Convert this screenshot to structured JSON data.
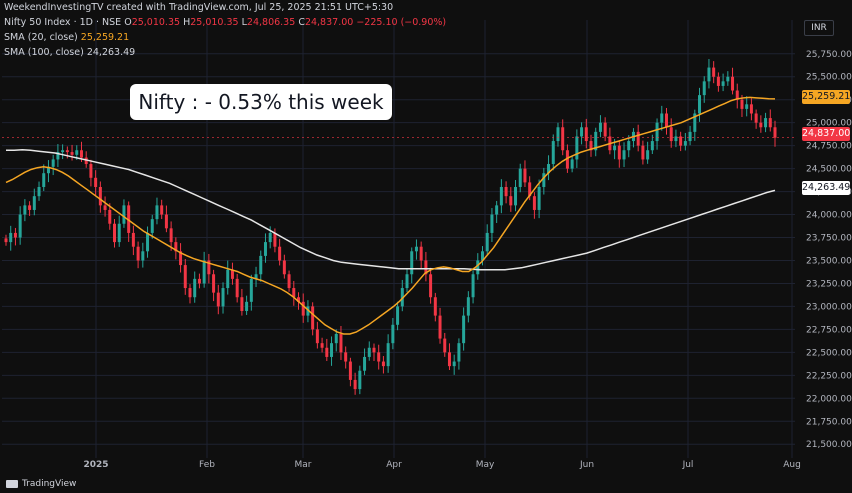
{
  "watermark": "WeekendInvestingTV created with TradingView.com, Jul 25, 2025 21:51 UTC+5:30",
  "legend": {
    "symbol": "Nifty 50 Index · 1D · NSE",
    "ohlc": {
      "o_label": "O",
      "o": "25,010.35",
      "h_label": "H",
      "h": "25,010.35",
      "l_label": "L",
      "l": "24,806.35",
      "c_label": "C",
      "c": "24,837.00",
      "change": "−225.10 (−0.90%)"
    },
    "sma20": {
      "label": "SMA (20, close)",
      "value": "25,259.21",
      "color": "#f5a623"
    },
    "sma100": {
      "label": "SMA (100, close)",
      "value": "24,263.49",
      "color": "#e6e6e6"
    }
  },
  "currency": "INR",
  "annotation": "Nifty : - 0.53% this week",
  "price_tags": [
    {
      "value": "25,259.21",
      "bg": "#f5a623",
      "fg": "#131722"
    },
    {
      "value": "24,837.00",
      "bg": "#f23645",
      "fg": "#ffffff"
    },
    {
      "value": "24,263.49",
      "bg": "#ffffff",
      "fg": "#131722"
    }
  ],
  "footer": "TradingView",
  "colors": {
    "up": "#26a69a",
    "down": "#f23645",
    "sma20": "#f5a623",
    "sma100": "#e6e6e6",
    "grid": "#1e2230",
    "bg": "#0f0f0f"
  },
  "chart_data": {
    "type": "candlestick",
    "x_tick_labels": [
      "2025",
      "Feb",
      "Mar",
      "Apr",
      "May",
      "Jun",
      "Jul",
      "Aug"
    ],
    "y_tick_labels": [
      "21,500.00",
      "21,750.00",
      "22,000.00",
      "22,250.00",
      "22,500.00",
      "22,750.00",
      "23,000.00",
      "23,250.00",
      "23,500.00",
      "23,750.00",
      "24,000.00",
      "24,250.00",
      "24,500.00",
      "24,750.00",
      "25,000.00",
      "25,250.00",
      "25,500.00",
      "25,750.00"
    ],
    "ylim": [
      21350,
      25900
    ],
    "series_close": [
      23700,
      23800,
      23750,
      24000,
      24100,
      24050,
      24200,
      24300,
      24450,
      24520,
      24600,
      24680,
      24700,
      24680,
      24650,
      24700,
      24620,
      24550,
      24400,
      24300,
      24100,
      24050,
      23900,
      23700,
      23900,
      24100,
      23800,
      23650,
      23500,
      23600,
      23800,
      23950,
      24100,
      24000,
      23850,
      23700,
      23600,
      23450,
      23200,
      23100,
      23300,
      23250,
      23500,
      23350,
      23150,
      23000,
      23200,
      23400,
      23300,
      23100,
      22950,
      23050,
      23300,
      23350,
      23550,
      23700,
      23800,
      23650,
      23500,
      23350,
      23200,
      23100,
      23050,
      22900,
      23000,
      22750,
      22600,
      22550,
      22450,
      22600,
      22700,
      22500,
      22400,
      22200,
      22100,
      22300,
      22450,
      22550,
      22500,
      22400,
      22350,
      22600,
      22800,
      23000,
      23200,
      23350,
      23600,
      23650,
      23500,
      23350,
      23100,
      22900,
      22650,
      22500,
      22350,
      22400,
      22600,
      22900,
      23100,
      23350,
      23500,
      23600,
      23800,
      24000,
      24100,
      24300,
      24200,
      24100,
      24300,
      24500,
      24350,
      24200,
      24050,
      24300,
      24450,
      24550,
      24800,
      24950,
      24700,
      24500,
      24600,
      24850,
      24950,
      24800,
      24700,
      24900,
      25000,
      24850,
      24700,
      24750,
      24600,
      24700,
      24800,
      24900,
      24750,
      24600,
      24700,
      24800,
      25000,
      25100,
      24950,
      24800,
      24850,
      24750,
      24800,
      24900,
      25100,
      25300,
      25450,
      25600,
      25500,
      25400,
      25450,
      25500,
      25350,
      25250,
      25150,
      25200,
      25100,
      25000,
      24950,
      25050,
      24950,
      24837
    ],
    "sma20": [
      24350,
      24380,
      24420,
      24460,
      24490,
      24510,
      24520,
      24510,
      24490,
      24460,
      24420,
      24370,
      24320,
      24270,
      24220,
      24170,
      24120,
      24070,
      24020,
      23970,
      23920,
      23870,
      23820,
      23780,
      23740,
      23700,
      23660,
      23620,
      23580,
      23550,
      23520,
      23500,
      23480,
      23460,
      23440,
      23420,
      23400,
      23380,
      23350,
      23320,
      23300,
      23280,
      23250,
      23220,
      23190,
      23150,
      23100,
      23040,
      22980,
      22920,
      22860,
      22800,
      22760,
      22720,
      22700,
      22700,
      22720,
      22760,
      22800,
      22850,
      22900,
      22950,
      23000,
      23060,
      23130,
      23200,
      23280,
      23360,
      23400,
      23420,
      23430,
      23420,
      23400,
      23380,
      23380,
      23420,
      23480,
      23560,
      23640,
      23740,
      23840,
      23940,
      24040,
      24140,
      24230,
      24320,
      24400,
      24470,
      24530,
      24580,
      24620,
      24650,
      24680,
      24700,
      24720,
      24740,
      24760,
      24780,
      24800,
      24820,
      24840,
      24860,
      24880,
      24900,
      24920,
      24940,
      24960,
      24980,
      25000,
      25030,
      25060,
      25090,
      25120,
      25150,
      25180,
      25210,
      25240,
      25260,
      25270,
      25275,
      25270,
      25265,
      25260,
      25259
    ],
    "sma100": [
      24700,
      24700,
      24705,
      24700,
      24690,
      24680,
      24670,
      24650,
      24630,
      24610,
      24590,
      24570,
      24550,
      24530,
      24510,
      24490,
      24460,
      24430,
      24400,
      24370,
      24340,
      24300,
      24260,
      24220,
      24180,
      24140,
      24100,
      24060,
      24020,
      23980,
      23940,
      23890,
      23840,
      23790,
      23740,
      23690,
      23640,
      23600,
      23560,
      23530,
      23500,
      23480,
      23470,
      23460,
      23450,
      23440,
      23430,
      23420,
      23410,
      23410,
      23410,
      23410,
      23410,
      23410,
      23410,
      23410,
      23410,
      23405,
      23400,
      23400,
      23400,
      23400,
      23410,
      23420,
      23440,
      23460,
      23480,
      23500,
      23520,
      23540,
      23560,
      23580,
      23610,
      23640,
      23670,
      23700,
      23730,
      23760,
      23790,
      23820,
      23850,
      23880,
      23910,
      23940,
      23970,
      24000,
      24030,
      24060,
      24090,
      24120,
      24150,
      24180,
      24210,
      24240,
      24263
    ]
  }
}
